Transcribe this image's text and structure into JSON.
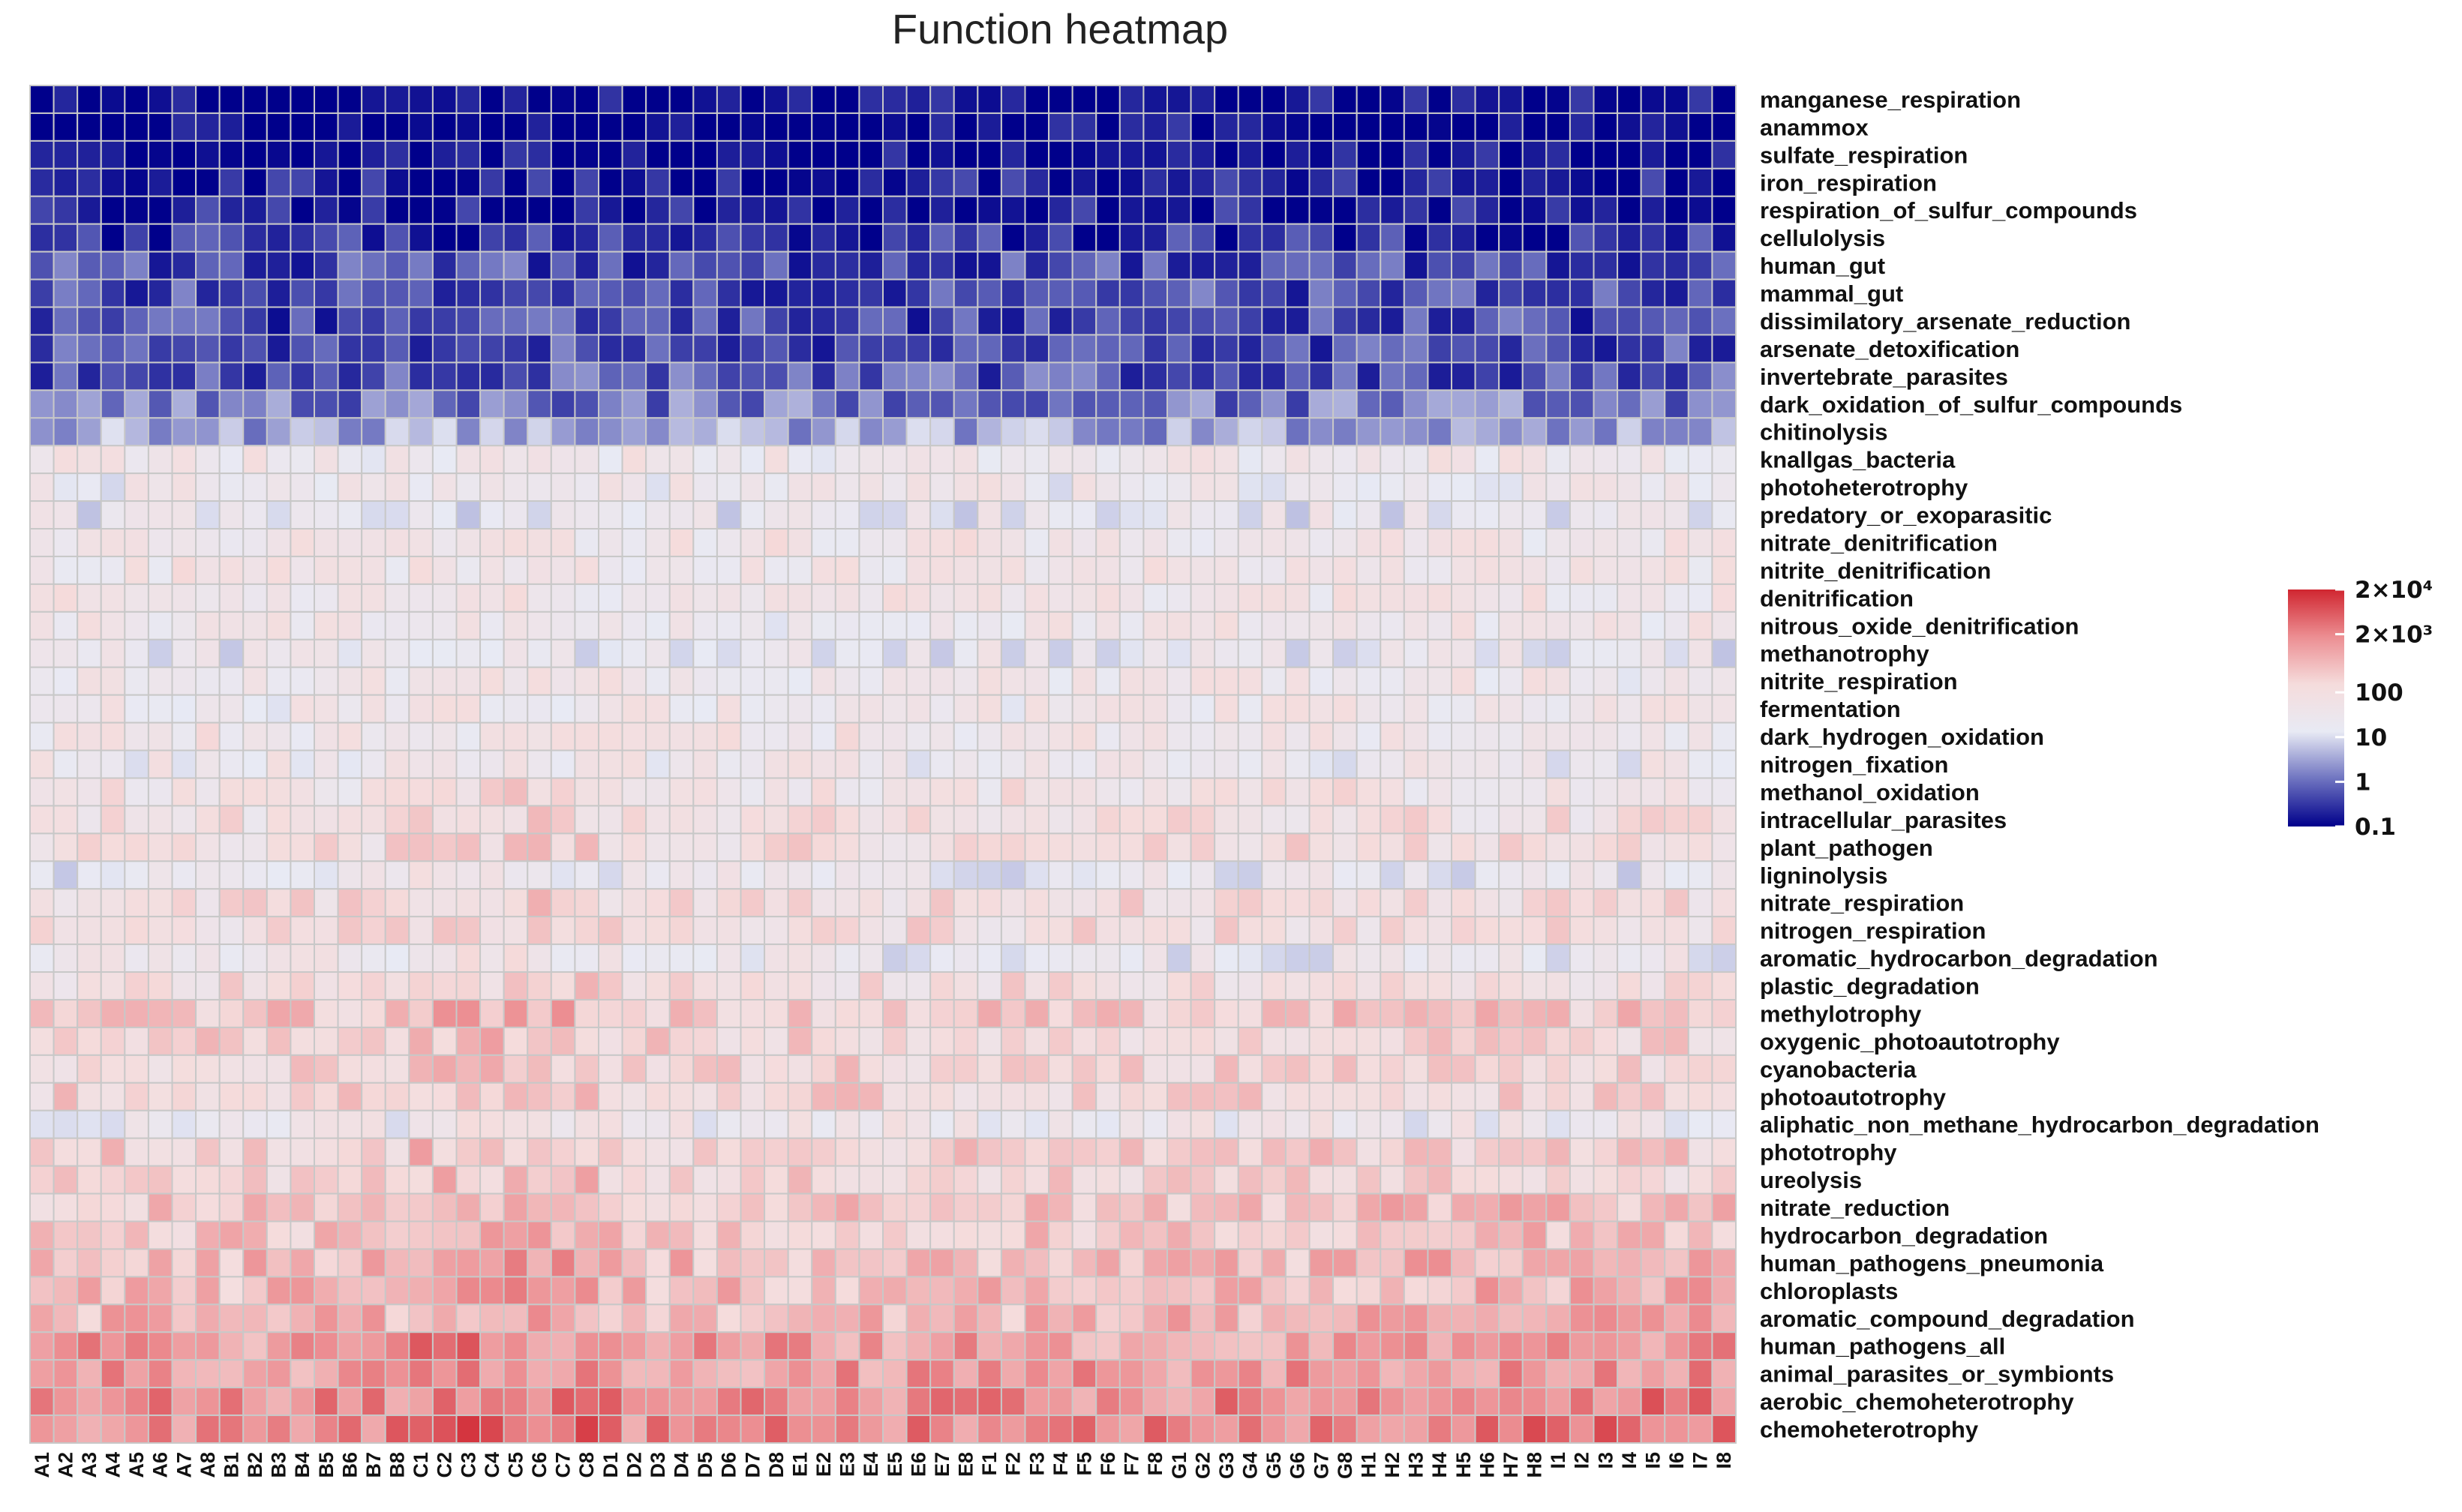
{
  "chart_data": {
    "type": "heatmap",
    "title": "Function heatmap",
    "rows": [
      "manganese_respiration",
      "anammox",
      "sulfate_respiration",
      "iron_respiration",
      "respiration_of_sulfur_compounds",
      "cellulolysis",
      "human_gut",
      "mammal_gut",
      "dissimilatory_arsenate_reduction",
      "arsenate_detoxification",
      "invertebrate_parasites",
      "dark_oxidation_of_sulfur_compounds",
      "chitinolysis",
      "knallgas_bacteria",
      "photoheterotrophy",
      "predatory_or_exoparasitic",
      "nitrate_denitrification",
      "nitrite_denitrification",
      "denitrification",
      "nitrous_oxide_denitrification",
      "methanotrophy",
      "nitrite_respiration",
      "fermentation",
      "dark_hydrogen_oxidation",
      "nitrogen_fixation",
      "methanol_oxidation",
      "intracellular_parasites",
      "plant_pathogen",
      "ligninolysis",
      "nitrate_respiration",
      "nitrogen_respiration",
      "aromatic_hydrocarbon_degradation",
      "plastic_degradation",
      "methylotrophy",
      "oxygenic_photoautotrophy",
      "cyanobacteria",
      "photoautotrophy",
      "aliphatic_non_methane_hydrocarbon_degradation",
      "phototrophy",
      "ureolysis",
      "nitrate_reduction",
      "hydrocarbon_degradation",
      "human_pathogens_pneumonia",
      "chloroplasts",
      "aromatic_compound_degradation",
      "human_pathogens_all",
      "animal_parasites_or_symbionts",
      "aerobic_chemoheterotrophy",
      "chemoheterotrophy"
    ],
    "columns": [
      "A1",
      "A2",
      "A3",
      "A4",
      "A5",
      "A6",
      "A7",
      "A8",
      "B1",
      "B2",
      "B3",
      "B4",
      "B5",
      "B6",
      "B7",
      "B8",
      "C1",
      "C2",
      "C3",
      "C4",
      "C5",
      "C6",
      "C7",
      "C8",
      "D1",
      "D2",
      "D3",
      "D4",
      "D5",
      "D6",
      "D7",
      "D8",
      "E1",
      "E2",
      "E3",
      "E4",
      "E5",
      "E6",
      "E7",
      "E8",
      "F1",
      "F2",
      "F3",
      "F4",
      "F5",
      "F6",
      "F7",
      "F8",
      "G1",
      "G2",
      "G3",
      "G4",
      "G5",
      "G6",
      "G7",
      "G8",
      "H1",
      "H2",
      "H3",
      "H4",
      "H5",
      "H6",
      "H7",
      "H8",
      "I1",
      "I2",
      "I3",
      "I4",
      "I5",
      "I6",
      "I7",
      "I8"
    ],
    "row_log10_mean": [
      -1,
      -1,
      -1,
      -0.85,
      -0.8,
      -0.6,
      -0.3,
      -0.3,
      -0.35,
      -0.3,
      -0.2,
      0.1,
      0.5,
      1.6,
      1.5,
      1.3,
      1.7,
      1.7,
      1.7,
      1.6,
      1.3,
      1.6,
      1.6,
      1.7,
      1.5,
      1.8,
      1.9,
      2.0,
      1.3,
      2.0,
      2.0,
      1.4,
      2.0,
      2.4,
      2.2,
      2.2,
      2.2,
      1.5,
      2.3,
      2.2,
      2.4,
      2.4,
      2.6,
      2.6,
      2.7,
      3.0,
      3.0,
      3.2,
      3.3
    ],
    "color_scale": {
      "colors": [
        "#00008b",
        "#6e73c0",
        "#e8eaf4",
        "#f5dcdc",
        "#ec8e92",
        "#d02630"
      ],
      "ticks": [
        {
          "label": "2×10⁴",
          "value": 20000
        },
        {
          "label": "2×10³",
          "value": 2000
        },
        {
          "label": "100",
          "value": 100
        },
        {
          "label": "10",
          "value": 10
        },
        {
          "label": "1",
          "value": 1
        },
        {
          "label": "0.1",
          "value": 0.1
        }
      ],
      "range": [
        0.1,
        20000
      ]
    },
    "grid": true,
    "legend_position": "right"
  }
}
